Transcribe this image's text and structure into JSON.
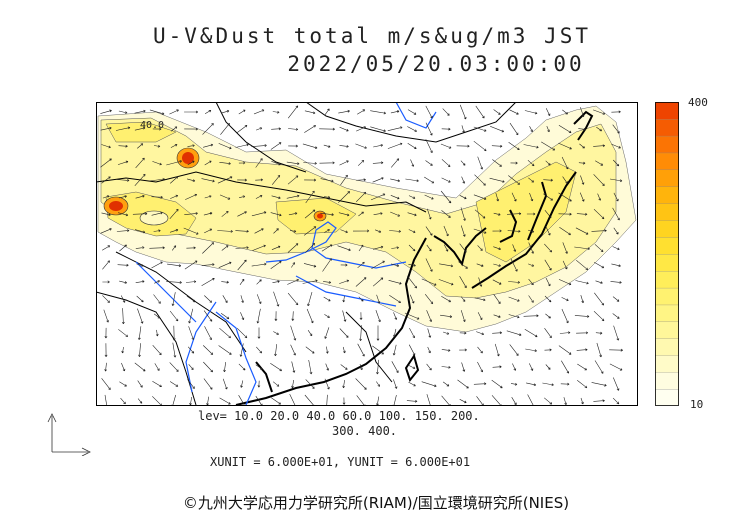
{
  "title": {
    "line1": "U-V&Dust total m/s&ug/m3 JST",
    "line2": "2022/05/20.03:00:00"
  },
  "map": {
    "contour_label": "40.0",
    "land_color": "#ffffff",
    "coast_color": "#000000",
    "river_color": "#1a5cff",
    "dust_colors": [
      "#fffde0",
      "#fff8a8",
      "#fff060",
      "#ffd028",
      "#ffa010",
      "#f06010",
      "#e03000"
    ]
  },
  "colorbar": {
    "max_label": "400",
    "min_label": "10",
    "colors": [
      "#fffff0",
      "#fffde0",
      "#fffbc8",
      "#fff9b0",
      "#fff79a",
      "#fff585",
      "#fff270",
      "#ffee5a",
      "#ffe845",
      "#ffe030",
      "#ffd420",
      "#ffc414",
      "#ffb40c",
      "#ffa008",
      "#ff8c06",
      "#fb7404",
      "#f55c02",
      "#ee4400"
    ]
  },
  "levels": {
    "line1": "lev= 10.0 20.0 40.0 60.0 100. 150. 200.",
    "line2": "300. 400."
  },
  "units": "XUNIT = 6.000E+01, YUNIT = 6.000E+01",
  "copyright": "©九州大学応用力学研究所(RIAM)/国立環境研究所(NIES)"
}
